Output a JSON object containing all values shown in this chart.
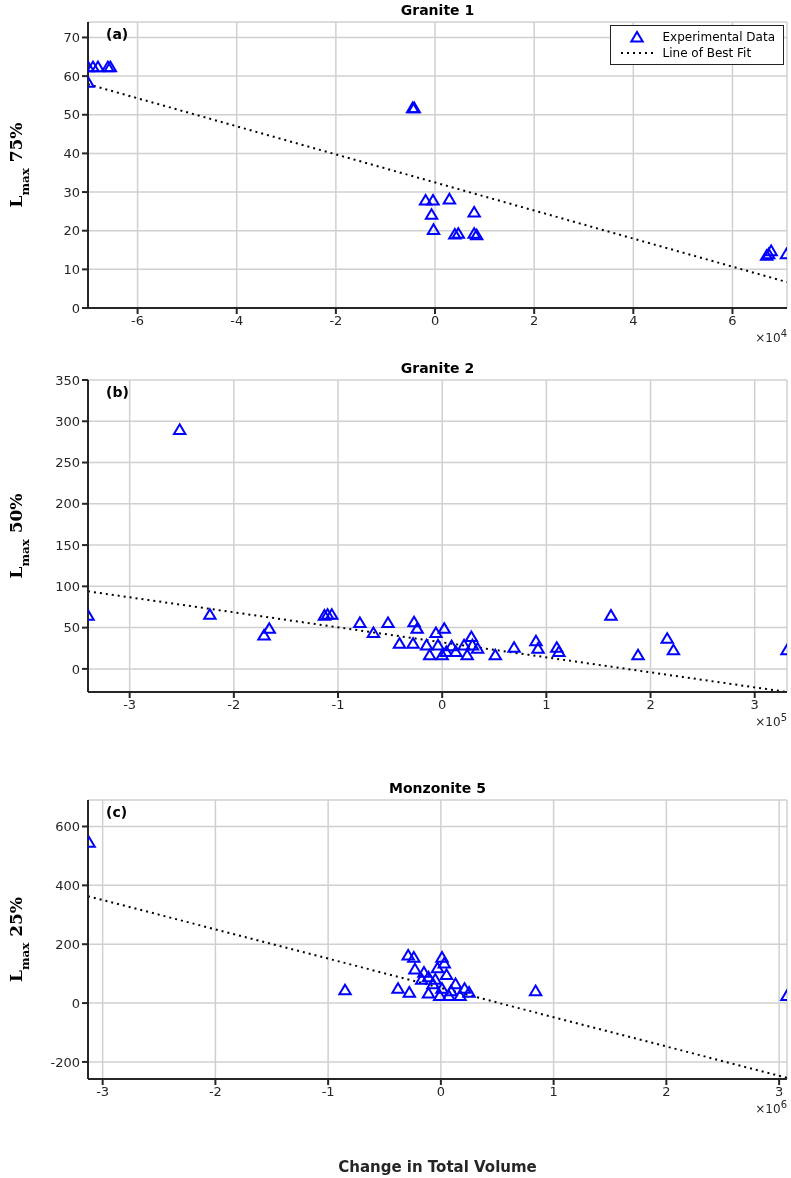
{
  "chart_data": [
    {
      "type": "scatter",
      "title": "Granite 1",
      "ylabel": "L$_{max}$ 75%",
      "annotations": [
        "(a)",
        "×10$^{4}$"
      ],
      "xlim": [
        -7,
        7.1
      ],
      "xticks": [
        -6,
        -4,
        -2,
        0,
        2,
        4,
        6
      ],
      "ylim": [
        0,
        74
      ],
      "yticks": [
        0,
        10,
        20,
        30,
        40,
        50,
        60,
        70
      ],
      "grid": true,
      "legend": "top right",
      "series": [
        {
          "name": "Experimental Data",
          "color": "#0000ff",
          "marker": "triangle",
          "x": [
            -7,
            -7,
            -6.9,
            -6.8,
            -6.6,
            -6.55,
            -0.45,
            -0.42,
            -0.19,
            -0.04,
            0.29,
            -0.07,
            -0.03,
            0.79,
            0.4,
            0.47,
            0.79,
            0.84,
            6.73,
            6.78,
            6.69,
            7.09
          ],
          "values": [
            58.2,
            62.2,
            62.2,
            62.2,
            62.2,
            62.2,
            51.6,
            51.6,
            27.7,
            27.7,
            28,
            24,
            20.1,
            24.6,
            18.9,
            19.1,
            19.1,
            18.7,
            13.8,
            14.6,
            13.4,
            13.8
          ]
        },
        {
          "name": "Line of Best Fit",
          "type": "line",
          "color": "#000000",
          "line_style": "dotted",
          "x": [
            -7,
            7.1
          ],
          "values": [
            57.9,
            6.7
          ]
        }
      ]
    },
    {
      "type": "scatter",
      "title": "Granite 2",
      "ylabel": "L$_{max}$ 50%",
      "annotations": [
        "(b)",
        "×10$^{5}$"
      ],
      "xlim": [
        -3.4,
        3.31
      ],
      "xticks": [
        -3,
        -2,
        -1,
        0,
        1,
        2,
        3
      ],
      "ylim": [
        -28,
        350
      ],
      "yticks": [
        0,
        50,
        100,
        150,
        200,
        250,
        300,
        350
      ],
      "grid": true,
      "series": [
        {
          "color": "#0000ff",
          "marker": "triangle",
          "x": [
            -2.52,
            -3.4,
            -2.23,
            -1.71,
            -1.66,
            -1.1,
            -1.06,
            -1.13,
            -0.79,
            -0.66,
            -0.52,
            -0.41,
            -0.27,
            -0.24,
            -0.28,
            -0.15,
            -0.12,
            -0.06,
            0.02,
            -0.04,
            0,
            0.04,
            0.09,
            0.13,
            0.21,
            0.24,
            0.28,
            0.29,
            0.34,
            0.51,
            0.69,
            0.9,
            0.92,
            1.1,
            1.12,
            1.62,
            1.88,
            2.16,
            2.22,
            3.31
          ],
          "values": [
            289,
            64,
            65,
            40,
            48,
            65,
            65,
            64,
            55,
            43,
            55,
            30,
            56,
            48,
            30,
            28,
            16,
            43,
            48,
            28,
            16,
            20,
            27,
            20,
            28,
            16,
            38,
            28,
            24,
            16,
            25,
            33,
            24,
            25,
            20,
            64,
            16,
            36,
            22,
            22
          ]
        },
        {
          "type": "line",
          "color": "#000000",
          "line_style": "dotted",
          "x": [
            -3.4,
            3.31
          ],
          "values": [
            94,
            -28
          ]
        }
      ]
    },
    {
      "type": "scatter",
      "title": "Monzonite 5",
      "ylabel": "L$_{max}$ 25%",
      "xlabel": "Change in Total Volume",
      "annotations": [
        "(c)",
        "×10$^{6}$"
      ],
      "xlim": [
        -3.13,
        3.07
      ],
      "xticks": [
        -3,
        -2,
        -1,
        0,
        1,
        2,
        3
      ],
      "ylim": [
        -258,
        690
      ],
      "yticks": [
        -200,
        0,
        200,
        400,
        600
      ],
      "grid": true,
      "series": [
        {
          "color": "#0000ff",
          "marker": "triangle",
          "x": [
            -3.12,
            -0.85,
            -0.38,
            -0.28,
            0.84,
            3.07,
            -0.29,
            -0.24,
            0.01,
            -0.23,
            -0.15,
            -0.11,
            -0.03,
            0.05,
            -0.07,
            0.01,
            0.09,
            -0.11,
            0.13,
            0.21,
            0.25,
            -0.01,
            0.07,
            0.17,
            -0.17,
            0.03,
            -0.05
          ],
          "values": [
            543,
            42,
            47,
            34,
            39,
            23,
            160,
            153,
            153,
            113,
            102,
            86,
            117,
            94,
            63,
            47,
            39,
            31,
            63,
            47,
            34,
            23,
            23,
            23,
            78,
            133,
            78
          ]
        },
        {
          "type": "line",
          "color": "#000000",
          "line_style": "dotted",
          "x": [
            -3.13,
            3.07
          ],
          "values": [
            363,
            -254
          ]
        }
      ]
    }
  ]
}
